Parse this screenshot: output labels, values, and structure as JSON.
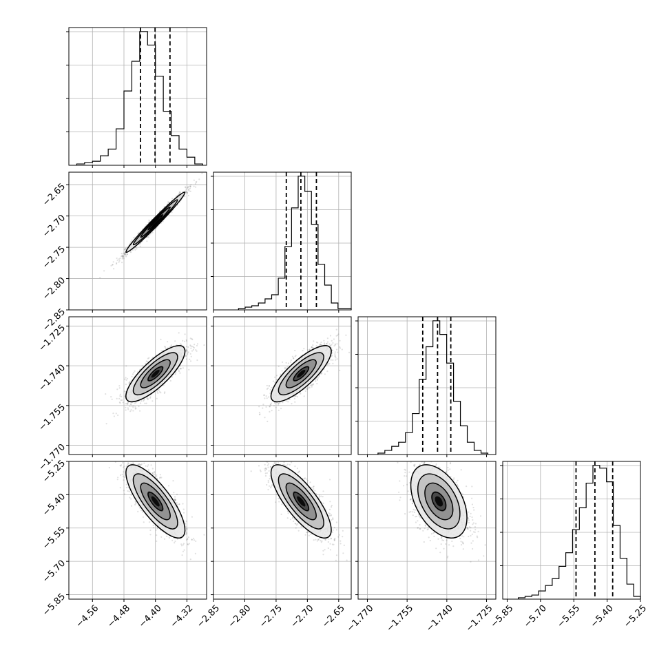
{
  "chart_data": {
    "type": "corner",
    "grid": true,
    "parameters": [
      {
        "range": [
          -4.62,
          -4.27
        ],
        "ticks": [
          {
            "v": -4.56,
            "label": "−4.56"
          },
          {
            "v": -4.48,
            "label": "−4.48"
          },
          {
            "v": -4.4,
            "label": "−4.40"
          },
          {
            "v": -4.32,
            "label": "−4.32"
          }
        ],
        "quantiles": [
          -4.438,
          -4.401,
          -4.363
        ],
        "hist": {
          "edges_range": [
            -4.6,
            -4.28
          ],
          "counts": [
            1,
            2,
            3,
            7,
            12,
            27,
            55,
            77,
            99,
            89,
            66,
            40,
            22,
            12,
            6,
            1
          ]
        }
      },
      {
        "range": [
          -2.85,
          -2.63
        ],
        "ticks": [
          {
            "v": -2.85,
            "label": "−2.85"
          },
          {
            "v": -2.8,
            "label": "−2.80"
          },
          {
            "v": -2.75,
            "label": "−2.75"
          },
          {
            "v": -2.7,
            "label": "−2.70"
          },
          {
            "v": -2.65,
            "label": "−2.65"
          }
        ],
        "quantiles": [
          -2.7337,
          -2.7104,
          -2.6856
        ],
        "hist": {
          "edges_range": [
            -2.81,
            -2.63
          ],
          "counts": [
            1,
            2,
            3,
            5,
            8,
            11,
            23,
            46,
            74,
            97,
            86,
            62,
            33,
            18,
            5,
            1,
            1
          ]
        }
      },
      {
        "range": [
          -1.7735,
          -1.7215
        ],
        "ticks": [
          {
            "v": -1.77,
            "label": "−1.770"
          },
          {
            "v": -1.755,
            "label": "−1.755"
          },
          {
            "v": -1.74,
            "label": "−1.740"
          },
          {
            "v": -1.725,
            "label": "−1.725"
          }
        ],
        "quantiles": [
          -1.7491,
          -1.7435,
          -1.7385
        ],
        "hist": {
          "edges_range": [
            -1.766,
            -1.7245
          ],
          "counts": [
            1,
            3,
            6,
            9,
            16,
            30,
            55,
            79,
            98,
            88,
            67,
            39,
            21,
            9,
            3,
            1
          ]
        }
      },
      {
        "range": [
          -5.87,
          -5.25
        ],
        "ticks": [
          {
            "v": -5.85,
            "label": "−5.85"
          },
          {
            "v": -5.7,
            "label": "−5.70"
          },
          {
            "v": -5.55,
            "label": "−5.55"
          },
          {
            "v": -5.4,
            "label": "−5.40"
          },
          {
            "v": -5.25,
            "label": "−5.25"
          }
        ],
        "quantiles": [
          -5.54,
          -5.455,
          -5.375
        ],
        "hist": {
          "edges_range": [
            -5.8,
            -5.25
          ],
          "counts": [
            1,
            2,
            3,
            6,
            10,
            15,
            24,
            34,
            51,
            67,
            85,
            98,
            96,
            86,
            54,
            30,
            11,
            2
          ]
        }
      }
    ],
    "pairs": [
      {
        "row": 1,
        "col": 0,
        "center": [
          -4.4,
          -2.71
        ],
        "corr": 0.985
      },
      {
        "row": 2,
        "col": 0,
        "center": [
          -4.4,
          -1.743
        ],
        "corr": 0.8
      },
      {
        "row": 2,
        "col": 1,
        "center": [
          -2.71,
          -1.743
        ],
        "corr": 0.8
      },
      {
        "row": 3,
        "col": 0,
        "center": [
          -4.4,
          -5.43
        ],
        "corr": -0.78
      },
      {
        "row": 3,
        "col": 1,
        "center": [
          -2.71,
          -5.43
        ],
        "corr": -0.78
      },
      {
        "row": 3,
        "col": 2,
        "center": [
          -1.743,
          -5.43
        ],
        "corr": -0.45
      }
    ],
    "colors": {
      "points": "#555555",
      "lines": "#000000",
      "grid": "#b0b0b0"
    }
  }
}
